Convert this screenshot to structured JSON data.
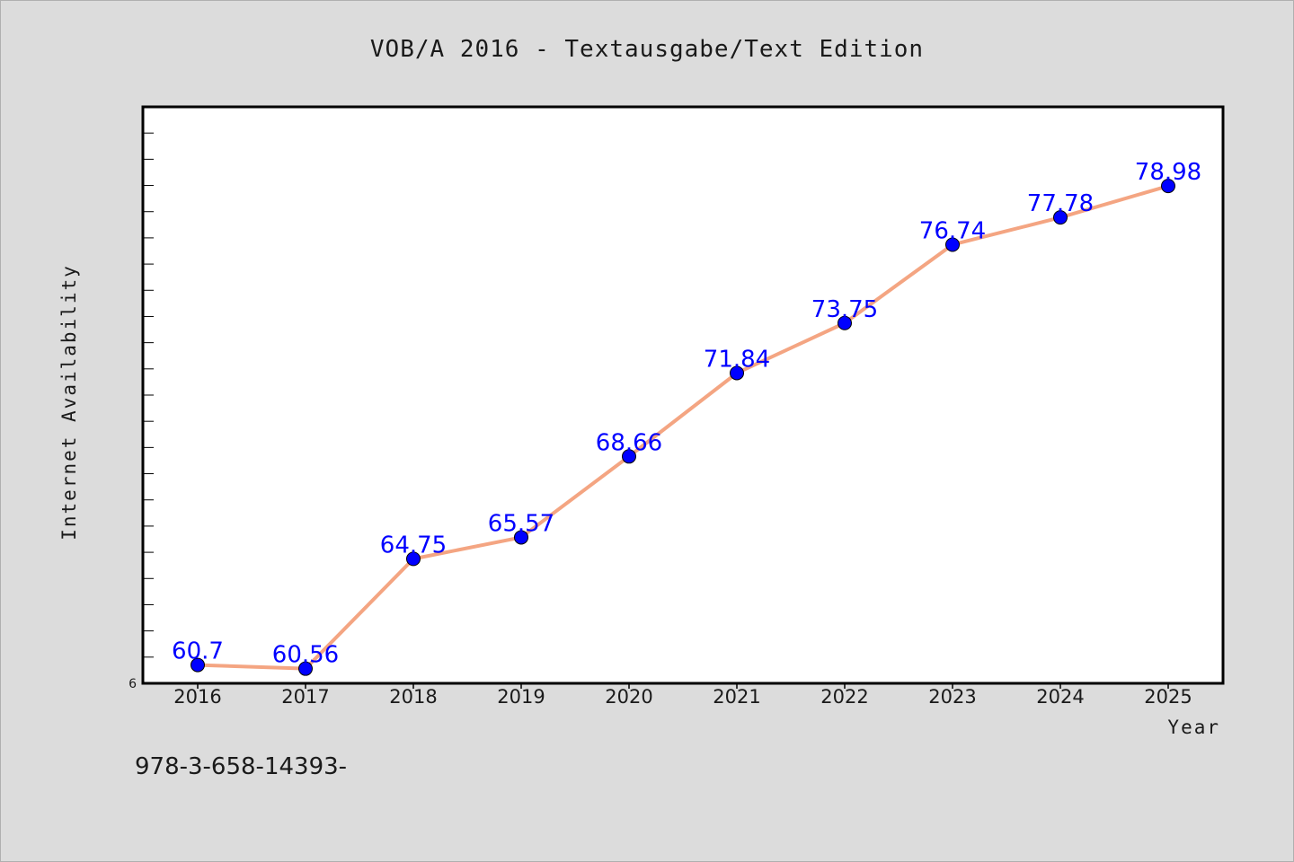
{
  "chart_data": {
    "type": "line",
    "title": "VOB/A 2016 - Textausgabe/Text Edition",
    "xlabel": "Year",
    "ylabel": "Internet Availability",
    "categories": [
      "2016",
      "2017",
      "2018",
      "2019",
      "2020",
      "2021",
      "2022",
      "2023",
      "2024",
      "2025"
    ],
    "series": [
      {
        "values": [
          60.7,
          60.56,
          64.75,
          65.57,
          68.66,
          71.84,
          73.75,
          76.74,
          77.78,
          78.98
        ],
        "labels": [
          "60.7",
          "60.56",
          "64.75",
          "65.57",
          "68.66",
          "71.84",
          "73.75",
          "76.74",
          "77.78",
          "78.98"
        ]
      }
    ],
    "ylim": [
      60.0,
      82.0
    ],
    "y_min_label": "6",
    "grid": false,
    "line_color": "#f4a582",
    "marker_color": "#0000ff",
    "label_color": "#0000ff"
  },
  "footer": {
    "text": "978-3-658-14393-"
  }
}
